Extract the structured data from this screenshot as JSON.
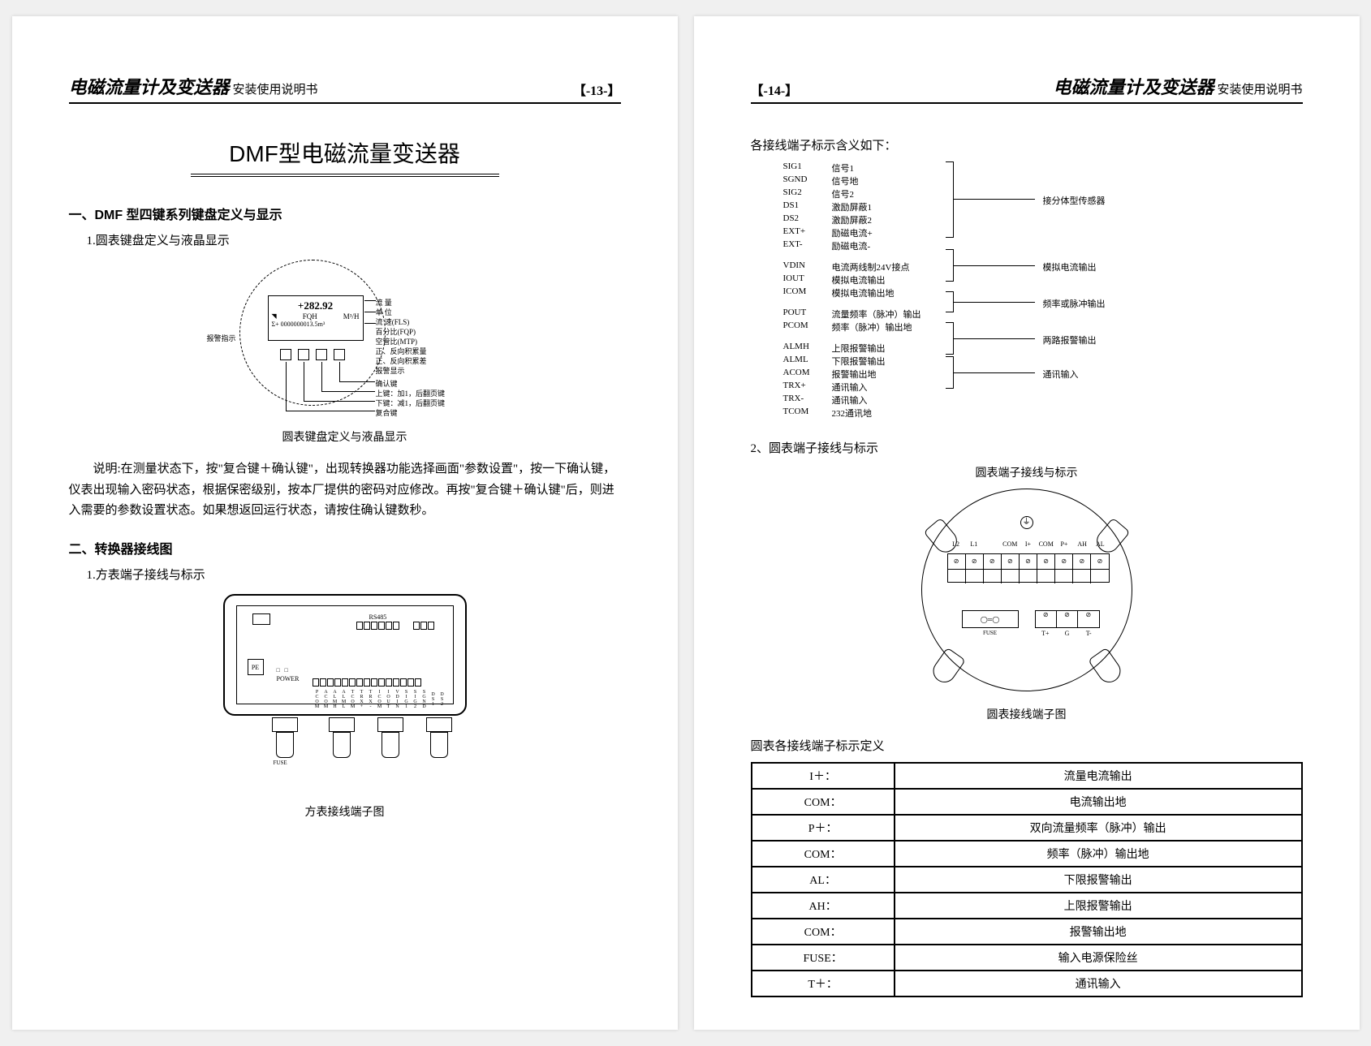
{
  "doc_title_italic": "电磁流量计及变送器",
  "doc_title_small": "安装使用说明书",
  "left_page_num": "【-13-】",
  "right_page_num": "【-14-】",
  "main_title": "DMF型电磁流量变送器",
  "sec1": "一、DMF 型四键系列键盘定义与显示",
  "sec1_1": "1.圆表键盘定义与液晶显示",
  "lcd_reading": "+282.92",
  "lcd_line2_left": "FQH",
  "lcd_line2_right": "M³/H",
  "lcd_line3": "Σ+ 0000000013.5m³",
  "lcd_labels": {
    "l0": "流 量",
    "l1": "单 位",
    "l2": "流 速(FLS)",
    "l3": "百分比(FQP)",
    "l4": "空管比(MTP)",
    "l5": "正、反向积累量",
    "l6": "正、反向积累差",
    "l7": "报警显示",
    "l8": "确认键",
    "l9": "上键：加1，后翻页键",
    "l10": "下键：减1，后翻页键",
    "l11": "复合键",
    "l12": "报警指示"
  },
  "fig1_caption": "圆表键盘定义与液晶显示",
  "para1": "说明:在测量状态下，按\"复合键＋确认键\"，出现转换器功能选择画面\"参数设置\"，按一下确认键，仪表出现输入密码状态，根据保密级别，按本厂提供的密码对应修改。再按\"复合键＋确认键\"后，则进入需要的参数设置状态。如果想返回运行状态，请按住确认键数秒。",
  "sec2": "二、转换器接线图",
  "sec2_1": "1.方表端子接线与标示",
  "sq_labels": {
    "rs485": "RS485",
    "power": "POWER",
    "pe": "PE",
    "row": [
      "PCOM",
      "ACOM",
      "ALMH",
      "ALML",
      "TCOM",
      "TRX+",
      "TRX-",
      "ICOM",
      "IOUT",
      "VDIN",
      "SIG1",
      "SIG2",
      "SGND",
      "DS1",
      "DS2"
    ],
    "fuse": "FUSE"
  },
  "fig2_caption": "方表接线端子图",
  "right_intro": "各接线端子标示含义如下：",
  "terminals": {
    "g1": [
      {
        "c": "SIG1",
        "d": "信号1"
      },
      {
        "c": "SGND",
        "d": "信号地"
      },
      {
        "c": "SIG2",
        "d": "信号2"
      },
      {
        "c": "DS1",
        "d": "激励屏蔽1"
      },
      {
        "c": "DS2",
        "d": "激励屏蔽2"
      },
      {
        "c": "EXT+",
        "d": "励磁电流+"
      },
      {
        "c": "EXT-",
        "d": "励磁电流-"
      }
    ],
    "g1_lbl": "接分体型传感器",
    "g2": [
      {
        "c": "VDIN",
        "d": "电流两线制24V接点"
      },
      {
        "c": "IOUT",
        "d": "模拟电流输出"
      },
      {
        "c": "ICOM",
        "d": "模拟电流输出地"
      }
    ],
    "g2_lbl": "模拟电流输出",
    "g3": [
      {
        "c": "POUT",
        "d": "流量频率（脉冲）输出"
      },
      {
        "c": "PCOM",
        "d": "频率（脉冲）输出地"
      }
    ],
    "g3_lbl": "频率或脉冲输出",
    "g4": [
      {
        "c": "ALMH",
        "d": "上限报警输出"
      },
      {
        "c": "ALML",
        "d": "下限报警输出"
      },
      {
        "c": "ACOM",
        "d": "报警输出地"
      },
      {
        "c": "TRX+",
        "d": "通讯输入"
      },
      {
        "c": "TRX-",
        "d": "通讯输入"
      },
      {
        "c": "TCOM",
        "d": "232通讯地"
      }
    ],
    "g4_lbl1": "两路报警输出",
    "g4_lbl2": "通讯输入"
  },
  "sec_r2": "2、圆表端子接线与标示",
  "fig3_title": "圆表端子接线与标示",
  "rt_top": [
    "L2",
    "L1",
    "",
    "COM",
    "I+",
    "COM",
    "P+",
    "AH",
    "AL"
  ],
  "rt_btm_fuse": "FUSE",
  "rt_btm_lbls": [
    "T+",
    "G",
    "T-"
  ],
  "fig3_caption": "圆表接线端子图",
  "table_title": "圆表各接线端子标示定义",
  "table_rows": [
    [
      "I＋：",
      "流量电流输出"
    ],
    [
      "COM：",
      "电流输出地"
    ],
    [
      "P＋：",
      "双向流量频率（脉冲）输出"
    ],
    [
      "COM：",
      "频率（脉冲）输出地"
    ],
    [
      "AL：",
      "下限报警输出"
    ],
    [
      "AH：",
      "上限报警输出"
    ],
    [
      "COM：",
      "报警输出地"
    ],
    [
      "FUSE：",
      "输入电源保险丝"
    ],
    [
      "T＋：",
      "通讯输入"
    ]
  ]
}
